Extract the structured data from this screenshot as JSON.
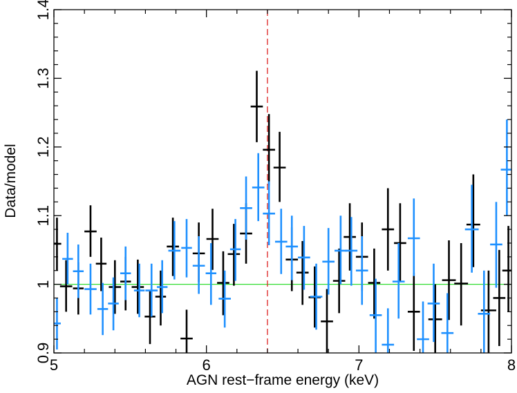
{
  "chart_data": {
    "type": "scatter",
    "title": "",
    "xlabel": "AGN rest−frame energy (keV)",
    "ylabel": "Data/model",
    "xlim": [
      5,
      8
    ],
    "ylim": [
      0.9,
      1.4
    ],
    "xticks": [
      5,
      6,
      7,
      8
    ],
    "xtick_labels": [
      "5",
      "6",
      "7",
      "8"
    ],
    "yticks": [
      0.9,
      1.0,
      1.1,
      1.2,
      1.3,
      1.4
    ],
    "ytick_labels": [
      "0.9",
      "1",
      "1.1",
      "1.2",
      "1.3",
      "1.4"
    ],
    "grid": false,
    "reference_lines": [
      {
        "orientation": "horizontal",
        "value": 1.0,
        "color": "#33dd33",
        "style": "solid"
      },
      {
        "orientation": "vertical",
        "value": 6.4,
        "color": "#dd2222",
        "style": "dashed"
      }
    ],
    "series": [
      {
        "name": "black",
        "color": "#000000",
        "points": [
          {
            "x": 5.02,
            "xerr": 0.028,
            "y": 1.059,
            "ylo": 1.02,
            "yhi": 1.097
          },
          {
            "x": 5.08,
            "xerr": 0.04,
            "y": 0.997,
            "ylo": 0.96,
            "yhi": 1.035
          },
          {
            "x": 5.16,
            "xerr": 0.035,
            "y": 0.994,
            "ylo": 0.956,
            "yhi": 1.032
          },
          {
            "x": 5.24,
            "xerr": 0.04,
            "y": 1.077,
            "ylo": 1.04,
            "yhi": 1.115
          },
          {
            "x": 5.31,
            "xerr": 0.035,
            "y": 1.03,
            "ylo": 0.99,
            "yhi": 1.068
          },
          {
            "x": 5.4,
            "xerr": 0.04,
            "y": 0.996,
            "ylo": 0.957,
            "yhi": 1.035
          },
          {
            "x": 5.47,
            "xerr": 0.035,
            "y": 1.004,
            "ylo": 0.962,
            "yhi": 1.04
          },
          {
            "x": 5.55,
            "xerr": 0.04,
            "y": 0.996,
            "ylo": 0.957,
            "yhi": 1.036
          },
          {
            "x": 5.63,
            "xerr": 0.035,
            "y": 0.953,
            "ylo": 0.913,
            "yhi": 0.992
          },
          {
            "x": 5.7,
            "xerr": 0.035,
            "y": 0.982,
            "ylo": 0.94,
            "yhi": 1.02
          },
          {
            "x": 5.78,
            "xerr": 0.04,
            "y": 1.055,
            "ylo": 1.012,
            "yhi": 1.097
          },
          {
            "x": 5.87,
            "xerr": 0.04,
            "y": 0.921,
            "ylo": 0.88,
            "yhi": 0.963
          },
          {
            "x": 5.95,
            "xerr": 0.04,
            "y": 1.045,
            "ylo": 1.003,
            "yhi": 1.09
          },
          {
            "x": 6.04,
            "xerr": 0.04,
            "y": 1.066,
            "ylo": 1.021,
            "yhi": 1.11
          },
          {
            "x": 6.11,
            "xerr": 0.04,
            "y": 1.002,
            "ylo": 0.955,
            "yhi": 1.048
          },
          {
            "x": 6.18,
            "xerr": 0.04,
            "y": 1.044,
            "ylo": 0.998,
            "yhi": 1.088
          },
          {
            "x": 6.26,
            "xerr": 0.04,
            "y": 1.074,
            "ylo": 1.03,
            "yhi": 1.118
          },
          {
            "x": 6.33,
            "xerr": 0.04,
            "y": 1.259,
            "ylo": 1.207,
            "yhi": 1.311
          },
          {
            "x": 6.41,
            "xerr": 0.04,
            "y": 1.196,
            "ylo": 1.144,
            "yhi": 1.248
          },
          {
            "x": 6.48,
            "xerr": 0.04,
            "y": 1.17,
            "ylo": 1.12,
            "yhi": 1.222
          },
          {
            "x": 6.56,
            "xerr": 0.04,
            "y": 1.036,
            "ylo": 0.99,
            "yhi": 1.083
          },
          {
            "x": 6.63,
            "xerr": 0.04,
            "y": 1.017,
            "ylo": 0.97,
            "yhi": 1.063
          },
          {
            "x": 6.71,
            "xerr": 0.04,
            "y": 0.981,
            "ylo": 0.937,
            "yhi": 1.026
          },
          {
            "x": 6.79,
            "xerr": 0.04,
            "y": 0.946,
            "ylo": 0.9,
            "yhi": 0.993
          },
          {
            "x": 6.87,
            "xerr": 0.04,
            "y": 1.005,
            "ylo": 0.958,
            "yhi": 1.052
          },
          {
            "x": 6.94,
            "xerr": 0.04,
            "y": 1.069,
            "ylo": 1.02,
            "yhi": 1.118
          },
          {
            "x": 7.02,
            "xerr": 0.04,
            "y": 1.04,
            "ylo": 0.99,
            "yhi": 1.09
          },
          {
            "x": 7.1,
            "xerr": 0.04,
            "y": 1.002,
            "ylo": 0.95,
            "yhi": 1.052
          },
          {
            "x": 7.19,
            "xerr": 0.04,
            "y": 1.08,
            "ylo": 1.02,
            "yhi": 1.14
          },
          {
            "x": 7.27,
            "xerr": 0.04,
            "y": 1.06,
            "ylo": 1.003,
            "yhi": 1.118
          },
          {
            "x": 7.36,
            "xerr": 0.04,
            "y": 0.96,
            "ylo": 0.903,
            "yhi": 1.017
          },
          {
            "x": 7.5,
            "xerr": 0.045,
            "y": 0.949,
            "ylo": 0.9,
            "yhi": 1.0
          },
          {
            "x": 7.59,
            "xerr": 0.045,
            "y": 1.006,
            "ylo": 0.948,
            "yhi": 1.064
          },
          {
            "x": 7.67,
            "xerr": 0.045,
            "y": 1.001,
            "ylo": 0.94,
            "yhi": 1.06
          },
          {
            "x": 7.75,
            "xerr": 0.045,
            "y": 1.087,
            "ylo": 1.025,
            "yhi": 1.16
          },
          {
            "x": 7.85,
            "xerr": 0.05,
            "y": 0.962,
            "ylo": 0.9,
            "yhi": 1.02
          },
          {
            "x": 7.92,
            "xerr": 0.04,
            "y": 0.98,
            "ylo": 0.91,
            "yhi": 1.05
          },
          {
            "x": 7.98,
            "xerr": 0.04,
            "y": 1.02,
            "ylo": 0.96,
            "yhi": 1.085
          }
        ]
      },
      {
        "name": "blue",
        "color": "#1e90ff",
        "points": [
          {
            "x": 5.02,
            "xerr": 0.025,
            "y": 0.943,
            "ylo": 0.905,
            "yhi": 0.98
          },
          {
            "x": 5.09,
            "xerr": 0.035,
            "y": 1.037,
            "ylo": 1.0,
            "yhi": 1.075
          },
          {
            "x": 5.16,
            "xerr": 0.035,
            "y": 1.019,
            "ylo": 0.98,
            "yhi": 1.058
          },
          {
            "x": 5.24,
            "xerr": 0.04,
            "y": 0.993,
            "ylo": 0.956,
            "yhi": 1.03
          },
          {
            "x": 5.32,
            "xerr": 0.035,
            "y": 0.964,
            "ylo": 0.926,
            "yhi": 1.002
          },
          {
            "x": 5.39,
            "xerr": 0.035,
            "y": 0.972,
            "ylo": 0.933,
            "yhi": 1.01
          },
          {
            "x": 5.47,
            "xerr": 0.035,
            "y": 1.016,
            "ylo": 0.977,
            "yhi": 1.055
          },
          {
            "x": 5.56,
            "xerr": 0.035,
            "y": 0.991,
            "ylo": 0.952,
            "yhi": 1.03
          },
          {
            "x": 5.64,
            "xerr": 0.04,
            "y": 0.991,
            "ylo": 0.953,
            "yhi": 1.03
          },
          {
            "x": 5.71,
            "xerr": 0.035,
            "y": 0.996,
            "ylo": 0.958,
            "yhi": 1.035
          },
          {
            "x": 5.79,
            "xerr": 0.04,
            "y": 1.049,
            "ylo": 1.007,
            "yhi": 1.092
          },
          {
            "x": 5.87,
            "xerr": 0.035,
            "y": 1.053,
            "ylo": 1.01,
            "yhi": 1.095
          },
          {
            "x": 5.95,
            "xerr": 0.04,
            "y": 1.027,
            "ylo": 0.986,
            "yhi": 1.07
          },
          {
            "x": 6.03,
            "xerr": 0.035,
            "y": 1.016,
            "ylo": 0.97,
            "yhi": 1.06
          },
          {
            "x": 6.12,
            "xerr": 0.04,
            "y": 0.979,
            "ylo": 0.937,
            "yhi": 1.02
          },
          {
            "x": 6.19,
            "xerr": 0.035,
            "y": 1.051,
            "ylo": 1.005,
            "yhi": 1.095
          },
          {
            "x": 6.26,
            "xerr": 0.04,
            "y": 1.111,
            "ylo": 1.065,
            "yhi": 1.157
          },
          {
            "x": 6.34,
            "xerr": 0.04,
            "y": 1.141,
            "ylo": 1.092,
            "yhi": 1.191
          },
          {
            "x": 6.41,
            "xerr": 0.04,
            "y": 1.103,
            "ylo": 1.057,
            "yhi": 1.15
          },
          {
            "x": 6.49,
            "xerr": 0.04,
            "y": 1.062,
            "ylo": 1.015,
            "yhi": 1.11
          },
          {
            "x": 6.56,
            "xerr": 0.04,
            "y": 1.055,
            "ylo": 1.006,
            "yhi": 1.1
          },
          {
            "x": 6.64,
            "xerr": 0.04,
            "y": 1.039,
            "ylo": 0.992,
            "yhi": 1.085
          },
          {
            "x": 6.72,
            "xerr": 0.04,
            "y": 0.982,
            "ylo": 0.934,
            "yhi": 1.03
          },
          {
            "x": 6.8,
            "xerr": 0.04,
            "y": 1.033,
            "ylo": 0.985,
            "yhi": 1.082
          },
          {
            "x": 6.88,
            "xerr": 0.04,
            "y": 1.049,
            "ylo": 1.0,
            "yhi": 1.1
          },
          {
            "x": 6.95,
            "xerr": 0.04,
            "y": 1.049,
            "ylo": 0.998,
            "yhi": 1.098
          },
          {
            "x": 7.02,
            "xerr": 0.04,
            "y": 1.02,
            "ylo": 0.97,
            "yhi": 1.07
          },
          {
            "x": 7.11,
            "xerr": 0.04,
            "y": 0.955,
            "ylo": 0.9,
            "yhi": 1.008
          },
          {
            "x": 7.19,
            "xerr": 0.04,
            "y": 0.912,
            "ylo": 0.9,
            "yhi": 0.965
          },
          {
            "x": 7.26,
            "xerr": 0.04,
            "y": 1.004,
            "ylo": 0.95,
            "yhi": 1.06
          },
          {
            "x": 7.36,
            "xerr": 0.04,
            "y": 1.067,
            "ylo": 1.012,
            "yhi": 1.125
          },
          {
            "x": 7.42,
            "xerr": 0.04,
            "y": 0.92,
            "ylo": 0.9,
            "yhi": 0.975
          },
          {
            "x": 7.49,
            "xerr": 0.04,
            "y": 0.972,
            "ylo": 0.916,
            "yhi": 1.03
          },
          {
            "x": 7.58,
            "xerr": 0.04,
            "y": 0.929,
            "ylo": 0.9,
            "yhi": 0.987
          },
          {
            "x": 7.74,
            "xerr": 0.045,
            "y": 1.08,
            "ylo": 1.017,
            "yhi": 1.145
          },
          {
            "x": 7.82,
            "xerr": 0.04,
            "y": 0.957,
            "ylo": 0.9,
            "yhi": 1.02
          },
          {
            "x": 7.9,
            "xerr": 0.04,
            "y": 1.058,
            "ylo": 0.995,
            "yhi": 1.12
          },
          {
            "x": 7.97,
            "xerr": 0.04,
            "y": 1.167,
            "ylo": 1.1,
            "yhi": 1.24
          }
        ]
      }
    ]
  }
}
